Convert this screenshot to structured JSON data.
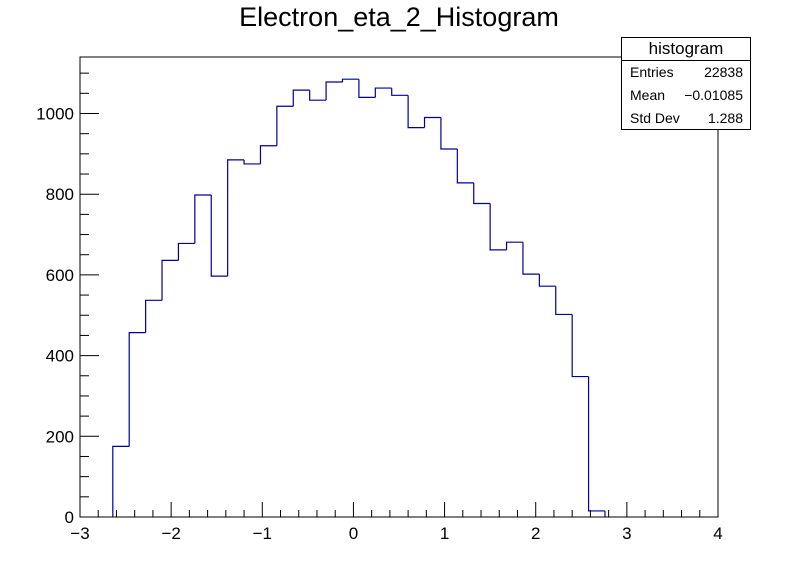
{
  "chart_data": {
    "type": "histogram",
    "title": "Electron_eta_2_Histogram",
    "xlim": [
      -3,
      4
    ],
    "ylim": [
      0,
      1140
    ],
    "x_ticks": [
      -3,
      -2,
      -1,
      0,
      1,
      2,
      3,
      4
    ],
    "x_tick_labels": [
      "−3",
      "−2",
      "−1",
      "0",
      "1",
      "2",
      "3",
      "4"
    ],
    "y_ticks": [
      0,
      200,
      400,
      600,
      800,
      1000
    ],
    "y_tick_labels": [
      "0",
      "200",
      "400",
      "600",
      "800",
      "1000"
    ],
    "bin_edges": [
      -2.64,
      -2.46,
      -2.28,
      -2.1,
      -1.92,
      -1.74,
      -1.56,
      -1.38,
      -1.2,
      -1.02,
      -0.84,
      -0.66,
      -0.48,
      -0.3,
      -0.12,
      0.06,
      0.24,
      0.42,
      0.6,
      0.78,
      0.96,
      1.14,
      1.32,
      1.5,
      1.68,
      1.86,
      2.04,
      2.22,
      2.4,
      2.58,
      2.76
    ],
    "values": [
      175,
      457,
      537,
      636,
      678,
      798,
      597,
      885,
      875,
      920,
      1018,
      1058,
      1033,
      1078,
      1085,
      1040,
      1063,
      1045,
      965,
      990,
      912,
      828,
      777,
      662,
      681,
      602,
      572,
      502,
      348,
      15
    ],
    "line_color": "#000099",
    "stats": {
      "name": "histogram",
      "rows": [
        {
          "label": "Entries",
          "value": "22838"
        },
        {
          "label": "Mean",
          "value": "−0.01085"
        },
        {
          "label": "Std Dev",
          "value": "1.288"
        }
      ]
    }
  }
}
